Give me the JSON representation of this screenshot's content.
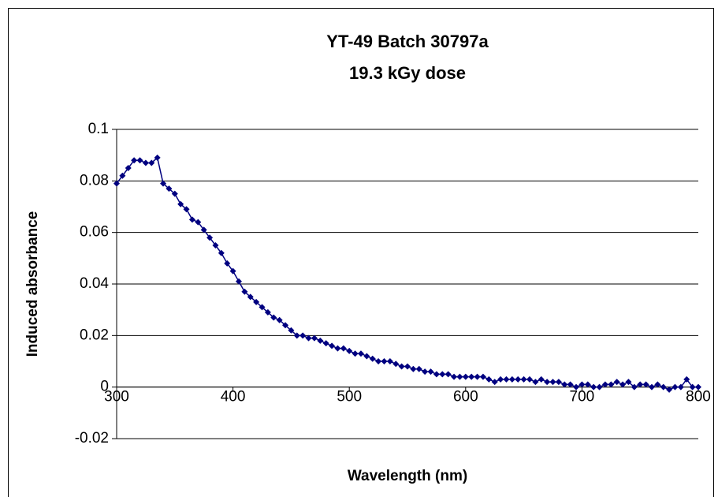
{
  "chart_data": {
    "type": "scatter",
    "title": [
      "YT-49 Batch 30797a",
      "19.3 kGy dose"
    ],
    "xlabel": "Wavelength (nm)",
    "ylabel": "Induced absorbance",
    "color": "#000080",
    "x": [
      300,
      305,
      310,
      315,
      320,
      325,
      330,
      335,
      340,
      345,
      350,
      355,
      360,
      365,
      370,
      375,
      380,
      385,
      390,
      395,
      400,
      405,
      410,
      415,
      420,
      425,
      430,
      435,
      440,
      445,
      450,
      455,
      460,
      465,
      470,
      475,
      480,
      485,
      490,
      495,
      500,
      505,
      510,
      515,
      520,
      525,
      530,
      535,
      540,
      545,
      550,
      555,
      560,
      565,
      570,
      575,
      580,
      585,
      590,
      595,
      600,
      605,
      610,
      615,
      620,
      625,
      630,
      635,
      640,
      645,
      650,
      655,
      660,
      665,
      670,
      675,
      680,
      685,
      690,
      695,
      700,
      705,
      710,
      715,
      720,
      725,
      730,
      735,
      740,
      745,
      750,
      755,
      760,
      765,
      770,
      775,
      780,
      785,
      790,
      795,
      800
    ],
    "values": [
      0.079,
      0.082,
      0.085,
      0.088,
      0.088,
      0.087,
      0.087,
      0.089,
      0.079,
      0.077,
      0.075,
      0.071,
      0.069,
      0.065,
      0.064,
      0.061,
      0.058,
      0.055,
      0.052,
      0.048,
      0.045,
      0.041,
      0.037,
      0.035,
      0.033,
      0.031,
      0.029,
      0.027,
      0.026,
      0.024,
      0.022,
      0.02,
      0.02,
      0.019,
      0.019,
      0.018,
      0.017,
      0.016,
      0.015,
      0.015,
      0.014,
      0.013,
      0.013,
      0.012,
      0.011,
      0.01,
      0.01,
      0.01,
      0.009,
      0.008,
      0.008,
      0.007,
      0.007,
      0.006,
      0.006,
      0.005,
      0.005,
      0.005,
      0.004,
      0.004,
      0.004,
      0.004,
      0.004,
      0.004,
      0.003,
      0.002,
      0.003,
      0.003,
      0.003,
      0.003,
      0.003,
      0.003,
      0.002,
      0.003,
      0.002,
      0.002,
      0.002,
      0.001,
      0.001,
      0.0,
      0.001,
      0.001,
      0.0,
      0.0,
      0.001,
      0.001,
      0.002,
      0.001,
      0.002,
      0.0,
      0.001,
      0.001,
      0.0,
      0.001,
      0.0,
      -0.001,
      0.0,
      0.0,
      0.003,
      0.0,
      0.0
    ],
    "xlim": [
      300,
      800
    ],
    "xticks": [
      300,
      400,
      500,
      600,
      700,
      800
    ],
    "ylim": [
      -0.02,
      0.1
    ],
    "yticks": [
      -0.02,
      0,
      0.02,
      0.04,
      0.06,
      0.08,
      0.1
    ],
    "grid": true
  }
}
